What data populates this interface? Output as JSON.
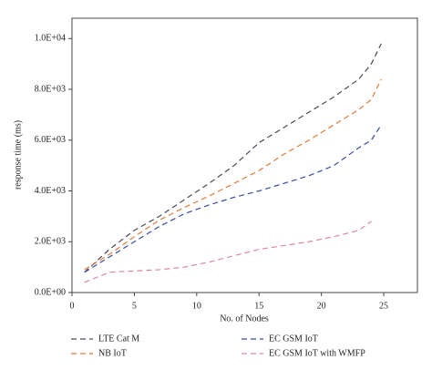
{
  "chart_data": {
    "type": "line",
    "xlabel": "No. of Nodes",
    "ylabel": "response time (ms)",
    "x": [
      1,
      3,
      5,
      7,
      9,
      11,
      13,
      15,
      17,
      19,
      21,
      23,
      24,
      24.8
    ],
    "series": [
      {
        "name": "LTE Cat M",
        "color": "#4a4a5a",
        "values": [
          800,
          1700,
          2450,
          3000,
          3650,
          4300,
          5000,
          5900,
          6500,
          7100,
          7700,
          8400,
          9000,
          9800
        ]
      },
      {
        "name": "EC GSM IoT",
        "color": "#3a4aa0",
        "values": [
          800,
          1400,
          2000,
          2600,
          3100,
          3450,
          3750,
          4000,
          4300,
          4600,
          5000,
          5700,
          6000,
          6600
        ]
      },
      {
        "name": "NB IoT",
        "color": "#e07b39",
        "values": [
          900,
          1500,
          2200,
          2850,
          3350,
          3800,
          4300,
          4800,
          5450,
          6000,
          6600,
          7200,
          7600,
          8400
        ]
      },
      {
        "name": "EC GSM IoT with WMFP",
        "color": "#d98a9a",
        "values": [
          400,
          800,
          850,
          900,
          1000,
          1200,
          1450,
          1700,
          1850,
          2000,
          2200,
          2450,
          2800,
          null
        ]
      }
    ],
    "xlim": [
      0,
      27.7
    ],
    "xticks": [
      0,
      5,
      10,
      15,
      20,
      25
    ],
    "ylim": [
      0,
      10800
    ],
    "yticks": [
      {
        "value": 0,
        "label": "0.0E+00"
      },
      {
        "value": 2000,
        "label": "2.0E+03"
      },
      {
        "value": 4000,
        "label": "4.0E+03"
      },
      {
        "value": 6000,
        "label": "6.0E+03"
      },
      {
        "value": 8000,
        "label": "8.0E+03"
      },
      {
        "value": 10000,
        "label": "1.0E+04"
      }
    ],
    "line_style": "dashed"
  }
}
